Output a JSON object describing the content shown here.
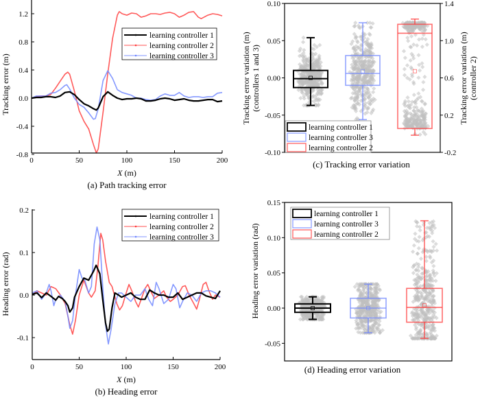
{
  "colors": {
    "controller1": "#000000",
    "controller2": "#ff3b3b",
    "controller3": "#6f86ff",
    "scatter": "#bfbfbf"
  },
  "chart_data": [
    {
      "id": "a",
      "type": "line",
      "caption": "(a) Path tracking error",
      "xlabel_italic": "X",
      "xlabel_unit": " (m)",
      "ylabel": "Tracking error (m)",
      "xlim": [
        0,
        200
      ],
      "ylim": [
        -0.8,
        1.3
      ],
      "xticks": [
        0,
        50,
        100,
        150,
        200
      ],
      "xtick_labels": [
        "0",
        "50",
        "100",
        "150",
        "200"
      ],
      "yticks": [
        -0.8,
        -0.4,
        0.0,
        0.4,
        0.8,
        1.2
      ],
      "ytick_labels": [
        "-0.8",
        "-0.4",
        "0.0",
        "0.4",
        "0.8",
        "1.2"
      ],
      "legend_position": "upper-right",
      "legend": [
        "learning controller 1",
        "learning controller 2",
        "learning controller 3"
      ],
      "series": [
        {
          "name": "learning controller 1",
          "color_key": "controller1",
          "x": [
            0,
            5,
            10,
            15,
            20,
            25,
            30,
            35,
            40,
            45,
            50,
            55,
            60,
            65,
            68,
            70,
            75,
            80,
            85,
            90,
            95,
            100,
            105,
            110,
            115,
            120,
            125,
            130,
            135,
            140,
            145,
            150,
            155,
            160,
            165,
            170,
            175,
            180,
            185,
            190,
            195,
            200
          ],
          "y": [
            0,
            0.01,
            0.01,
            0.02,
            0.02,
            0.01,
            0.03,
            0.08,
            0.09,
            0.05,
            -0.02,
            -0.08,
            -0.11,
            -0.15,
            -0.17,
            -0.14,
            0.02,
            0.09,
            0.04,
            0.0,
            -0.02,
            -0.01,
            -0.01,
            0.0,
            -0.01,
            -0.04,
            -0.04,
            -0.03,
            -0.01,
            0.0,
            -0.01,
            -0.03,
            -0.02,
            -0.01,
            -0.03,
            -0.04,
            -0.04,
            -0.03,
            -0.02,
            -0.02,
            -0.05,
            -0.04
          ]
        },
        {
          "name": "learning controller 2",
          "color_key": "controller2",
          "x": [
            0,
            5,
            10,
            15,
            20,
            25,
            30,
            35,
            38,
            40,
            45,
            50,
            55,
            60,
            65,
            68,
            70,
            75,
            80,
            85,
            90,
            92,
            95,
            100,
            105,
            110,
            115,
            120,
            125,
            130,
            135,
            140,
            145,
            150,
            155,
            160,
            165,
            170,
            175,
            178,
            185,
            190,
            195,
            200
          ],
          "y": [
            0,
            0.02,
            0.03,
            0.03,
            0.05,
            0.14,
            0.24,
            0.34,
            0.37,
            0.34,
            0.1,
            -0.18,
            -0.33,
            -0.44,
            -0.66,
            -0.78,
            -0.72,
            -0.2,
            0.35,
            0.85,
            1.18,
            1.23,
            1.2,
            1.18,
            1.21,
            1.2,
            1.15,
            1.17,
            1.2,
            1.2,
            1.19,
            1.21,
            1.22,
            1.2,
            1.15,
            1.18,
            1.22,
            1.23,
            1.15,
            1.13,
            1.18,
            1.2,
            1.19,
            1.17
          ]
        },
        {
          "name": "learning controller 3",
          "color_key": "controller3",
          "x": [
            0,
            5,
            10,
            15,
            20,
            25,
            30,
            35,
            37,
            40,
            45,
            50,
            55,
            60,
            65,
            67,
            70,
            75,
            80,
            85,
            90,
            95,
            100,
            105,
            110,
            115,
            120,
            125,
            130,
            135,
            140,
            145,
            150,
            155,
            160,
            165,
            170,
            175,
            180,
            185,
            190,
            195,
            200
          ],
          "y": [
            0,
            0.03,
            0.03,
            0.03,
            0.07,
            0.08,
            0.12,
            0.18,
            0.19,
            0.13,
            0.0,
            -0.09,
            -0.13,
            -0.21,
            -0.3,
            -0.29,
            -0.15,
            0.25,
            0.39,
            0.28,
            0.12,
            0.08,
            0.06,
            0.04,
            0.0,
            0.0,
            -0.02,
            -0.03,
            -0.02,
            0.03,
            0.06,
            0.04,
            0.04,
            0.08,
            0.03,
            0.01,
            0.02,
            0.02,
            0.01,
            0.02,
            0.02,
            0.07,
            0.08
          ]
        }
      ]
    },
    {
      "id": "b",
      "type": "line",
      "caption": "(b) Heading error",
      "xlabel_italic": "X",
      "xlabel_unit": " (m)",
      "ylabel": "Heading error (rad)",
      "xlim": [
        0,
        200
      ],
      "ylim": [
        -0.15,
        0.2
      ],
      "xticks": [
        0,
        50,
        100,
        150,
        200
      ],
      "xtick_labels": [
        "0",
        "50",
        "100",
        "150",
        "200"
      ],
      "yticks": [
        -0.1,
        0.0,
        0.1,
        0.2
      ],
      "ytick_labels": [
        "-0.1",
        "0.0",
        "0.1",
        "0.2"
      ],
      "legend_position": "upper-right",
      "legend": [
        "learning controller 1",
        "learning controller 2",
        "learning controller 3"
      ],
      "series": [
        {
          "name": "learning controller 1",
          "color_key": "controller1",
          "x": [
            0,
            5,
            10,
            15,
            20,
            25,
            28,
            32,
            35,
            38,
            40,
            43,
            45,
            50,
            55,
            60,
            65,
            68,
            72,
            75,
            78,
            80,
            82,
            85,
            88,
            92,
            95,
            100,
            105,
            110,
            115,
            120,
            125,
            130,
            135,
            140,
            145,
            150,
            155,
            160,
            165,
            170,
            175,
            180,
            185,
            190,
            195,
            200
          ],
          "y": [
            0.002,
            0.005,
            -0.006,
            0.005,
            -0.003,
            -0.012,
            -0.003,
            -0.008,
            -0.015,
            -0.025,
            -0.04,
            -0.03,
            -0.005,
            0.02,
            0.04,
            0.035,
            0.055,
            0.07,
            0.05,
            -0.01,
            -0.065,
            -0.085,
            -0.08,
            -0.03,
            0.005,
            0.0,
            -0.005,
            0.0,
            0.005,
            -0.005,
            -0.01,
            -0.01,
            0.012,
            0.005,
            0.0,
            0.0,
            -0.005,
            -0.005,
            0.005,
            -0.01,
            -0.005,
            0.0,
            0.005,
            0.005,
            -0.002,
            -0.005,
            -0.008,
            0.01
          ]
        },
        {
          "name": "learning controller 2",
          "color_key": "controller2",
          "x": [
            0,
            5,
            10,
            15,
            20,
            25,
            30,
            35,
            40,
            43,
            46,
            50,
            55,
            60,
            63,
            67,
            70,
            73,
            75,
            78,
            82,
            85,
            90,
            93,
            96,
            100,
            103,
            106,
            110,
            113,
            116,
            120,
            123,
            126,
            130,
            135,
            140,
            143,
            147,
            150,
            155,
            160,
            163,
            167,
            172,
            175,
            178,
            182,
            185,
            188,
            192,
            195,
            200
          ],
          "y": [
            0.0,
            0.01,
            0.005,
            0.0,
            0.02,
            0.015,
            0.0,
            -0.02,
            -0.07,
            -0.092,
            -0.06,
            0.0,
            0.035,
            0.005,
            -0.005,
            0.01,
            0.07,
            0.145,
            0.13,
            0.08,
            0.03,
            0.02,
            -0.02,
            -0.035,
            -0.025,
            0.005,
            0.025,
            0.01,
            -0.015,
            -0.028,
            -0.01,
            0.015,
            0.025,
            0.01,
            -0.008,
            0.0,
            0.01,
            -0.005,
            -0.015,
            -0.01,
            0.0,
            0.02,
            0.022,
            0.0,
            -0.02,
            -0.033,
            -0.01,
            0.025,
            0.03,
            0.01,
            -0.01,
            0.0,
            -0.005
          ]
        },
        {
          "name": "learning controller 3",
          "color_key": "controller3",
          "x": [
            0,
            5,
            10,
            15,
            18,
            20,
            23,
            25,
            30,
            35,
            38,
            40,
            43,
            46,
            50,
            53,
            56,
            60,
            63,
            66,
            69,
            72,
            75,
            78,
            81,
            84,
            88,
            92,
            95,
            100,
            105,
            110,
            115,
            120,
            124,
            128,
            132,
            135,
            140,
            145,
            150,
            153,
            157,
            160,
            165,
            170,
            175,
            180,
            185,
            190,
            195,
            200
          ],
          "y": [
            0.005,
            0.01,
            -0.01,
            0.005,
            0.025,
            0.01,
            -0.025,
            -0.01,
            0.0,
            -0.015,
            -0.05,
            -0.078,
            -0.06,
            0.0,
            0.06,
            0.04,
            0.035,
            0.005,
            0.02,
            0.12,
            0.16,
            0.13,
            0.02,
            -0.07,
            -0.115,
            -0.08,
            -0.02,
            0.005,
            0.005,
            -0.005,
            -0.015,
            0.0,
            0.0,
            0.015,
            -0.01,
            -0.025,
            0.03,
            0.015,
            -0.02,
            -0.01,
            0.025,
            0.015,
            -0.03,
            -0.015,
            0.005,
            0.0,
            -0.015,
            0.005,
            0.01,
            0.01,
            0.005,
            -0.005
          ]
        }
      ]
    },
    {
      "id": "c",
      "type": "box",
      "caption": "(c) Tracking error variation",
      "ylabel_left_line1": "Tracking error variation (m)",
      "ylabel_left_line2": "(controllers 1 and 3)",
      "ylabel_right_line1": "Tracking error variation (m)",
      "ylabel_right_line2": "(controller 2)",
      "ylim_left": [
        -0.1,
        0.1
      ],
      "ylim_right": [
        -0.2,
        1.4
      ],
      "yticks_left": [
        -0.1,
        -0.05,
        0.0,
        0.05,
        0.1
      ],
      "ytick_labels_left": [
        "-0.10",
        "-0.05",
        "0.00",
        "0.05",
        "0.10"
      ],
      "yticks_right": [
        -0.2,
        0.2,
        0.6,
        1.0,
        1.4
      ],
      "ytick_labels_right": [
        "-0.2",
        "0.2",
        "0.6",
        "1.0",
        "1.4"
      ],
      "legend_position": "lower-left",
      "legend": [
        "learning controller 1",
        "learning controller 3",
        "learning controller 2"
      ],
      "boxes": [
        {
          "name": "learning controller 1",
          "color_key": "controller1",
          "axis": "left",
          "whisker_low": -0.037,
          "q1": -0.013,
          "median": -0.001,
          "mean": 0.0,
          "q3": 0.01,
          "whisker_high": 0.054
        },
        {
          "name": "learning controller 3",
          "color_key": "controller3",
          "axis": "left",
          "whisker_low": -0.056,
          "q1": -0.01,
          "median": 0.006,
          "mean": 0.009,
          "q3": 0.03,
          "whisker_high": 0.074
        },
        {
          "name": "learning controller 2",
          "color_key": "controller2",
          "axis": "right",
          "whisker_low": -0.016,
          "q1": 0.056,
          "median": 1.08,
          "mean": 0.672,
          "q3": 1.176,
          "whisker_high": 1.232
        }
      ]
    },
    {
      "id": "d",
      "type": "box",
      "caption": "(d) Heading error variation",
      "ylabel": "Heading error variation (rad)",
      "ylim": [
        -0.075,
        0.15
      ],
      "yticks": [
        -0.05,
        0.0,
        0.05,
        0.1,
        0.15
      ],
      "ytick_labels": [
        "-0.05",
        "0.00",
        "0.05",
        "0.10",
        "0.15"
      ],
      "legend_position": "upper-left",
      "legend": [
        "learning controller 1",
        "learning controller 3",
        "learning controller 2"
      ],
      "boxes": [
        {
          "name": "learning controller 1",
          "color_key": "controller1",
          "whisker_low": -0.016,
          "q1": -0.006,
          "median": 0.0,
          "mean": 0.0,
          "q3": 0.006,
          "whisker_high": 0.016
        },
        {
          "name": "learning controller 3",
          "color_key": "controller3",
          "whisker_low": -0.035,
          "q1": -0.014,
          "median": 0.0,
          "mean": 0.0,
          "q3": 0.014,
          "whisker_high": 0.034
        },
        {
          "name": "learning controller 2",
          "color_key": "controller2",
          "whisker_low": -0.043,
          "q1": -0.02,
          "median": 0.001,
          "mean": 0.004,
          "q3": 0.028,
          "whisker_high": 0.124
        }
      ]
    }
  ]
}
